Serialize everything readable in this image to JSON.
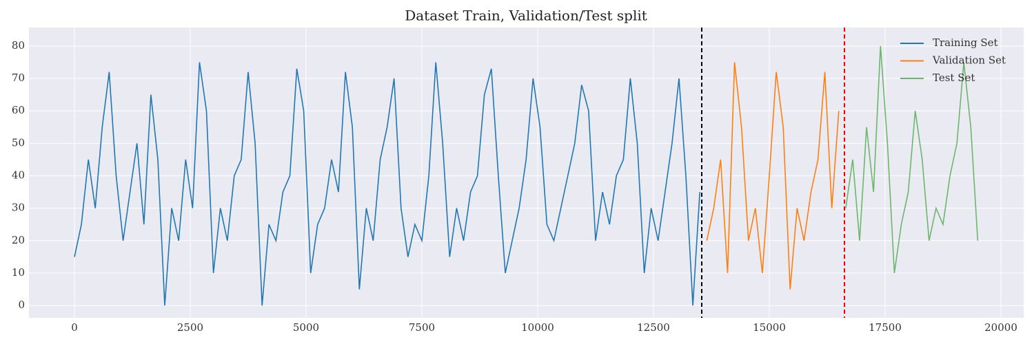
{
  "chart_data": {
    "type": "line",
    "title": "Dataset Train, Validation/Test split",
    "xlim": [
      -982,
      20491
    ],
    "ylim": [
      -3.8,
      85.7
    ],
    "xticks": [
      0,
      2500,
      5000,
      7500,
      10000,
      12500,
      15000,
      17500,
      20000
    ],
    "yticks": [
      0,
      10,
      20,
      30,
      40,
      50,
      60,
      70,
      80
    ],
    "grid": true,
    "legend": "upper right",
    "vlines": [
      {
        "x": 13542,
        "color": "#000000"
      },
      {
        "x": 16622,
        "color": "#ff0000"
      }
    ],
    "series": [
      {
        "name": "Training Set",
        "color": "#1f77b4",
        "x": [
          0,
          150,
          300,
          450,
          600,
          750,
          900,
          1050,
          1200,
          1350,
          1500,
          1650,
          1800,
          1950,
          2100,
          2250,
          2400,
          2550,
          2700,
          2850,
          3000,
          3150,
          3300,
          3450,
          3600,
          3750,
          3900,
          4050,
          4200,
          4350,
          4500,
          4650,
          4800,
          4950,
          5100,
          5250,
          5400,
          5550,
          5700,
          5850,
          6000,
          6150,
          6300,
          6450,
          6600,
          6750,
          6900,
          7050,
          7200,
          7350,
          7500,
          7650,
          7800,
          7950,
          8100,
          8250,
          8400,
          8550,
          8700,
          8850,
          9000,
          9150,
          9300,
          9450,
          9600,
          9750,
          9900,
          10050,
          10200,
          10350,
          10500,
          10650,
          10800,
          10950,
          11100,
          11250,
          11400,
          11550,
          11700,
          11850,
          12000,
          12150,
          12300,
          12450,
          12600,
          12750,
          12900,
          13050,
          13200,
          13350,
          13500
        ],
        "values": [
          15,
          25,
          45,
          30,
          55,
          72,
          40,
          20,
          35,
          50,
          25,
          65,
          45,
          0,
          30,
          20,
          45,
          30,
          75,
          60,
          10,
          30,
          20,
          40,
          45,
          72,
          50,
          0,
          25,
          20,
          35,
          40,
          73,
          60,
          10,
          25,
          30,
          45,
          35,
          72,
          55,
          5,
          30,
          20,
          45,
          55,
          70,
          30,
          15,
          25,
          20,
          40,
          75,
          50,
          15,
          30,
          20,
          35,
          40,
          65,
          73,
          40,
          10,
          20,
          30,
          45,
          70,
          55,
          25,
          20,
          30,
          40,
          50,
          68,
          60,
          20,
          35,
          25,
          40,
          45,
          70,
          50,
          10,
          30,
          20,
          35,
          50,
          70,
          40,
          0,
          35
        ]
      },
      {
        "name": "Validation Set",
        "color": "#ff7f0e",
        "x": [
          13650,
          13800,
          13950,
          14100,
          14250,
          14400,
          14550,
          14700,
          14850,
          15000,
          15150,
          15300,
          15450,
          15600,
          15750,
          15900,
          16050,
          16200,
          16350,
          16500
        ],
        "values": [
          20,
          30,
          45,
          10,
          75,
          55,
          20,
          30,
          10,
          40,
          72,
          55,
          5,
          30,
          20,
          35,
          45,
          72,
          30,
          60
        ]
      },
      {
        "name": "Test Set",
        "color": "#6cb66c",
        "x": [
          16650,
          16800,
          16950,
          17100,
          17250,
          17400,
          17550,
          17700,
          17850,
          18000,
          18150,
          18300,
          18450,
          18600,
          18750,
          18900,
          19050,
          19200,
          19350,
          19500
        ],
        "values": [
          30,
          45,
          20,
          55,
          35,
          80,
          50,
          10,
          25,
          35,
          60,
          45,
          20,
          30,
          25,
          40,
          50,
          75,
          55,
          20
        ]
      }
    ]
  }
}
